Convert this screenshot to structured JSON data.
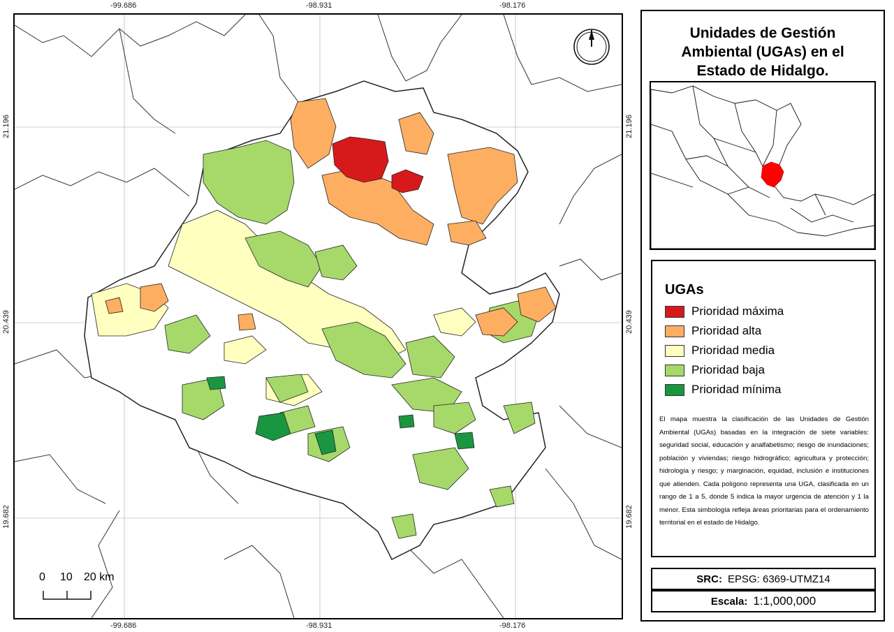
{
  "map": {
    "coords_top": [
      "-99.686",
      "-98.931",
      "-98.176"
    ],
    "coords_bottom": [
      "-99.686",
      "-98.931",
      "-98.176"
    ],
    "coords_left": [
      "21.196",
      "20.439",
      "19.682"
    ],
    "coords_right": [
      "21.196",
      "20.439",
      "19.682"
    ],
    "north_icon": "north-arrow-icon",
    "colors": {
      "max": "#d7191c",
      "high": "#fdae61",
      "medium": "#ffffc0",
      "low": "#a6d96a",
      "min": "#1a9641"
    }
  },
  "scale_bar": {
    "labels": [
      "0",
      "10",
      "20 km"
    ]
  },
  "panel": {
    "title_lines": [
      "Unidades de Gestión",
      "Ambiental (UGAs) en el",
      "Estado de Hidalgo."
    ],
    "legend": {
      "title": "UGAs",
      "items": [
        {
          "label": "Prioridad máxima",
          "color": "#d7191c"
        },
        {
          "label": "Prioridad alta",
          "color": "#fdae61"
        },
        {
          "label": "Prioridad media",
          "color": "#ffffc0"
        },
        {
          "label": "Prioridad baja",
          "color": "#a6d96a"
        },
        {
          "label": "Prioridad mínima",
          "color": "#1a9641"
        }
      ]
    },
    "description": "El mapa muestra la clasificación de las Unidades de Gestión Ambiental (UGAs) basadas en la integración de siete variables: seguridad social, educación y analfabetismo; riesgo de inundaciones; población y viviendas; riesgo hidrográfico; agricultura y protección; hidrología y riesgo; y marginación, equidad, inclusión e instituciones que atienden. Cada polígono representa una UGA, clasificada en un rango de 1 a 5, donde 5 indica la mayor urgencia de atención y 1 la menor. Esta simbología refleja áreas prioritarias para el ordenamiento territorial en el estado de Hidalgo.",
    "src_label": "SRC:",
    "src_value": "EPSG: 6369-UTMZ14",
    "scale_label": "Escala:",
    "scale_value": "1:1,000,000"
  }
}
